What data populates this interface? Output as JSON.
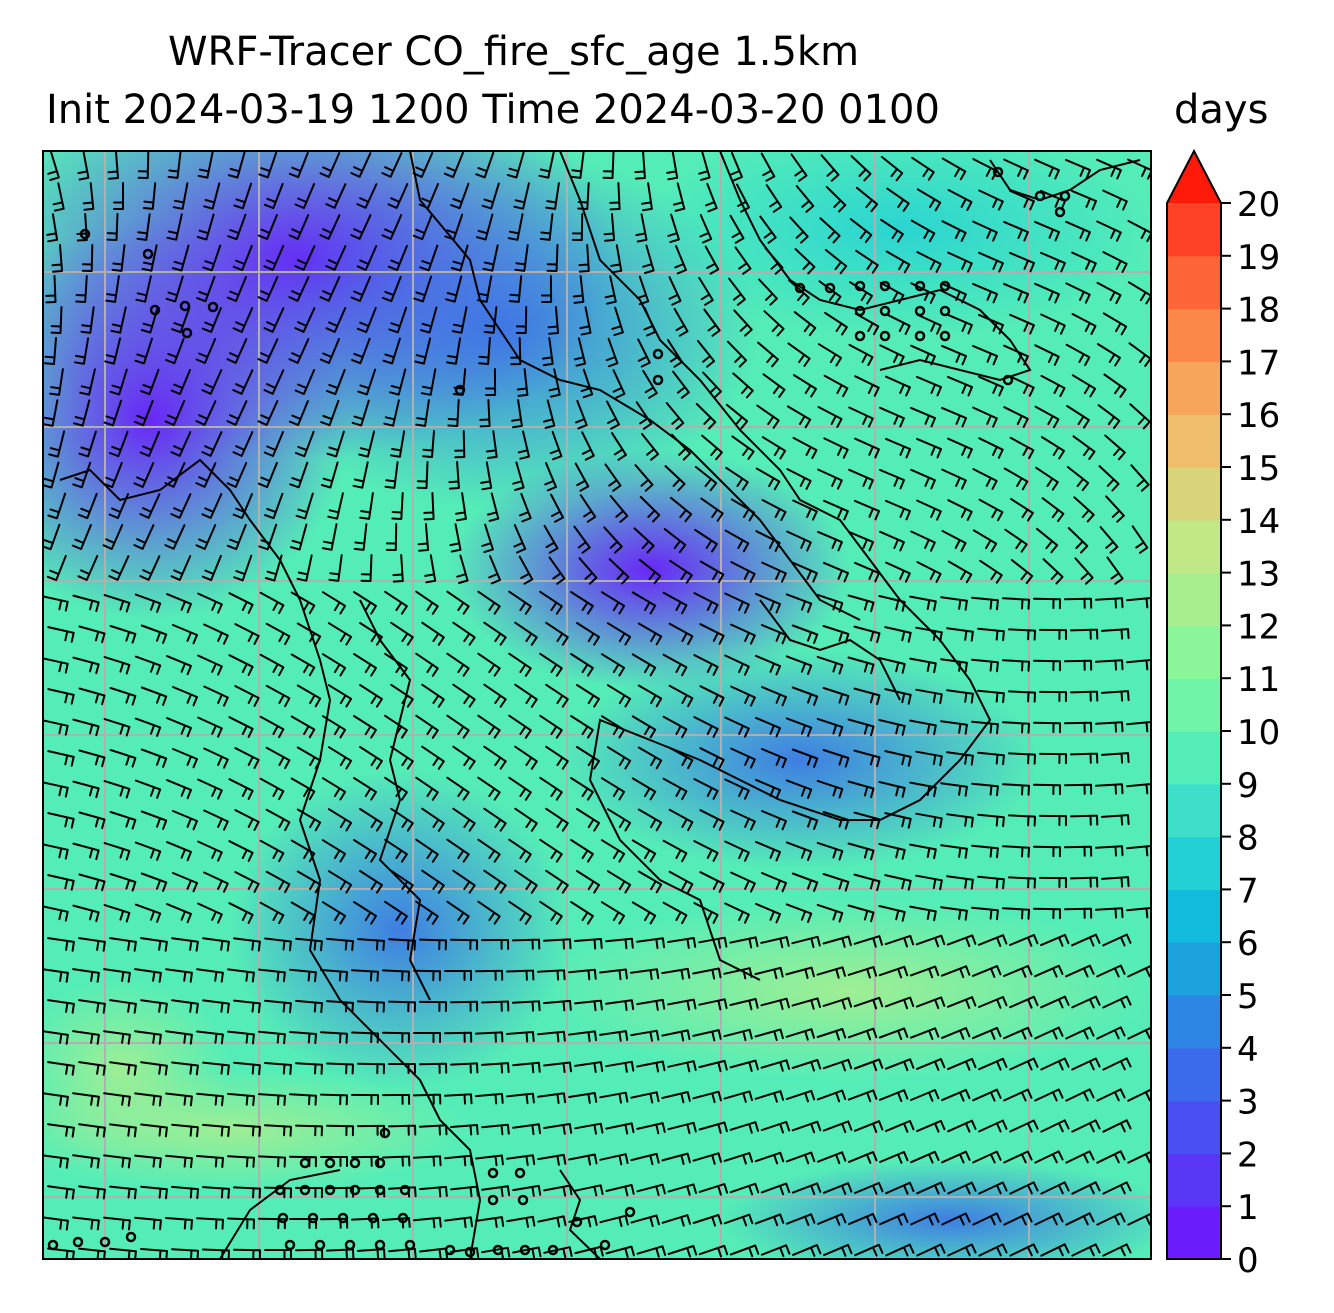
{
  "title_line1": "WRF-Tracer CO_fire_sfc_age 1.5km",
  "title_line2": "Init 2024-03-19 1200 Time 2024-03-20 0100",
  "units": "days",
  "chart_data": {
    "type": "heatmap",
    "field": "CO_fire_sfc_age",
    "colorbar": {
      "min": 0,
      "max": 20,
      "step": 1,
      "extend": "max",
      "ticks": [
        "0",
        "1",
        "2",
        "3",
        "4",
        "5",
        "6",
        "7",
        "8",
        "9",
        "10",
        "11",
        "12",
        "13",
        "14",
        "15",
        "16",
        "17",
        "18",
        "19",
        "20"
      ],
      "colors": [
        "#6a1dfa",
        "#5a36f6",
        "#4a4ff1",
        "#3b6aea",
        "#2d86e4",
        "#1ea2dd",
        "#12badb",
        "#23d0d6",
        "#3edfc8",
        "#55edb7",
        "#70f4a8",
        "#8bf59a",
        "#a7ee8f",
        "#c2e786",
        "#d9d47a",
        "#eebe6b",
        "#f7a55a",
        "#fb8748",
        "#fd6538",
        "#ff4127"
      ],
      "over_color": "#ff1a0a"
    },
    "grid": true,
    "overlays": [
      "wind barbs",
      "coastlines and borders"
    ]
  }
}
